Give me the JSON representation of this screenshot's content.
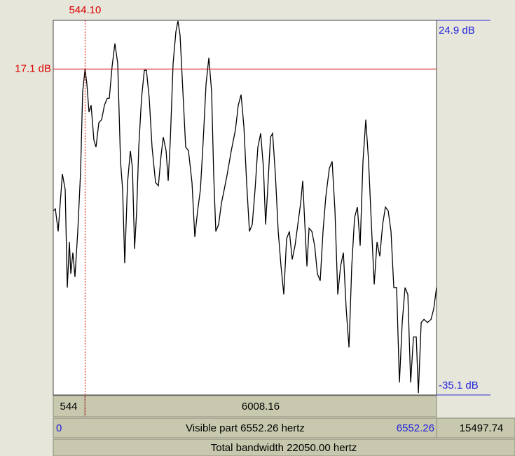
{
  "chart_data": {
    "type": "line",
    "x": [
      0,
      36,
      84,
      156,
      204,
      240,
      276,
      300,
      335,
      371,
      419,
      467,
      503,
      544.1,
      575,
      611,
      647,
      695,
      731,
      779,
      827,
      875,
      922,
      958,
      1006,
      1054,
      1102,
      1150,
      1186,
      1222,
      1270,
      1318,
      1354,
      1390,
      1426,
      1462,
      1509,
      1557,
      1593,
      1641,
      1689,
      1749,
      1797,
      1845,
      1881,
      1929,
      1965,
      2001,
      2049,
      2097,
      2132,
      2168,
      2228,
      2264,
      2312,
      2372,
      2420,
      2468,
      2516,
      2564,
      2612,
      2660,
      2707,
      2743,
      2779,
      2827,
      2875,
      2923,
      2971,
      3043,
      3115,
      3163,
      3211,
      3259,
      3306,
      3354,
      3402,
      3450,
      3498,
      3546,
      3594,
      3630,
      3666,
      3714,
      3750,
      3798,
      3846,
      3894,
      3941,
      3989,
      4037,
      4085,
      4133,
      4181,
      4229,
      4265,
      4301,
      4337,
      4373,
      4421,
      4469,
      4516,
      4564,
      4612,
      4660,
      4720,
      4768,
      4816,
      4864,
      4912,
      4960,
      5008,
      5056,
      5103,
      5151,
      5199,
      5247,
      5295,
      5343,
      5391,
      5439,
      5487,
      5535,
      5583,
      5631,
      5679,
      5726,
      5774,
      5822,
      5870,
      5918,
      5966,
      6014,
      6062,
      6110,
      6158,
      6206,
      6242,
      6290,
      6338,
      6398,
      6458,
      6505,
      6552
    ],
    "values": [
      -5.6,
      -5.3,
      -8.9,
      0.3,
      -2.2,
      -17.9,
      -10.6,
      -15.7,
      -12.3,
      -16.2,
      -8.9,
      0.6,
      13.5,
      17.1,
      14.7,
      10.2,
      11.3,
      5.7,
      4.6,
      8.5,
      9.0,
      11.3,
      12.4,
      12.4,
      17.5,
      21.2,
      18.0,
      2.3,
      -2.2,
      -14.0,
      -1.1,
      4.0,
      1.2,
      -11.7,
      -5.6,
      4.6,
      12.4,
      16.9,
      16.9,
      12.4,
      4.6,
      -1.1,
      -1.6,
      3.4,
      6.2,
      4.0,
      -0.8,
      5.7,
      18.0,
      23.1,
      24.8,
      22.5,
      11.3,
      4.6,
      4.0,
      -1.1,
      -9.8,
      -5.6,
      -2.2,
      5.7,
      14.7,
      18.9,
      13.5,
      0.1,
      -8.9,
      -7.8,
      -4.4,
      -2.2,
      0.1,
      4.0,
      7.4,
      11.3,
      13.0,
      7.9,
      -1.1,
      -8.9,
      -7.8,
      -2.2,
      4.6,
      6.8,
      1.2,
      -7.8,
      -2.2,
      6.2,
      6.8,
      0.1,
      -8.9,
      -14.5,
      -19.0,
      -10.1,
      -8.9,
      -13.4,
      -11.2,
      -7.8,
      -4.4,
      -0.8,
      -7.8,
      -14.5,
      -8.4,
      -8.9,
      -11.2,
      -15.7,
      -16.8,
      -8.9,
      -3.3,
      1.2,
      2.3,
      -5.6,
      -19.0,
      -14.5,
      -12.3,
      -21.3,
      -27.5,
      -14.5,
      -6.7,
      -5.0,
      -11.2,
      2.3,
      9.0,
      2.3,
      -7.8,
      -17.4,
      -10.6,
      -12.9,
      -7.8,
      -5.0,
      -5.6,
      -8.9,
      -17.9,
      -17.9,
      -33.1,
      -23.5,
      -17.9,
      -19.0,
      -33.1,
      -25.8,
      -25.8,
      -34.8,
      -23.5,
      -23.0,
      -23.5,
      -23.0,
      -21.3,
      -17.9
    ],
    "color": "#000000",
    "xlim": [
      0,
      6552.26
    ],
    "xticks": [
      0,
      6552.26
    ],
    "ylim": [
      -35.1,
      24.9
    ],
    "yticks": [
      {
        "value": -35.1,
        "label": "-35.1 dB"
      },
      {
        "value": 24.9,
        "label": "24.9 dB"
      }
    ],
    "cursor_x": {
      "value": 544.1,
      "label": "544.10"
    },
    "cursor_y": {
      "value": 17.1,
      "label": "17.1 dB"
    }
  },
  "panels": {
    "cursor_left": "544",
    "cursor_right": "6008.16",
    "visible": "Visible part 6552.26 hertz",
    "right_remainder": "15497.74",
    "total": "Total bandwidth 22050.00 hertz"
  }
}
